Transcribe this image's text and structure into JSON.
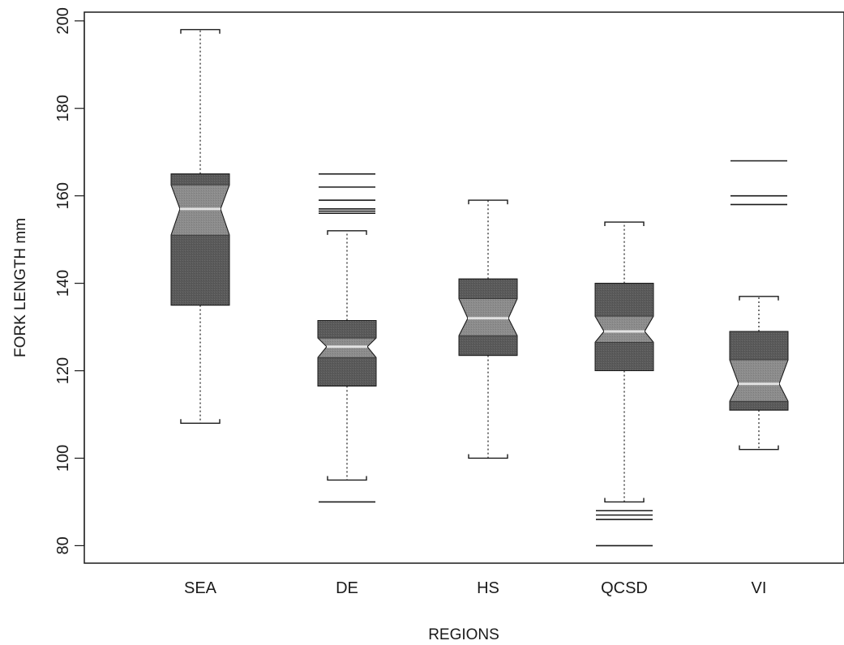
{
  "chart_data": {
    "type": "boxplot",
    "notched": true,
    "title": "",
    "xlabel": "REGIONS",
    "ylabel": "FORK LENGTH mm",
    "ylim": [
      76,
      202
    ],
    "yticks": [
      80,
      100,
      120,
      140,
      160,
      180,
      200
    ],
    "categories": [
      "SEA",
      "DE",
      "HS",
      "QCSD",
      "VI"
    ],
    "boxes": [
      {
        "name": "SEA",
        "whisker_low": 108,
        "q1": 135,
        "median": 157,
        "q3": 165,
        "whisker_high": 198,
        "notch_low": 151,
        "notch_high": 162.5,
        "outliers": []
      },
      {
        "name": "DE",
        "whisker_low": 95,
        "q1": 116.5,
        "median": 125.5,
        "q3": 131.5,
        "whisker_high": 152,
        "notch_low": 123,
        "notch_high": 127.5,
        "outliers": [
          90,
          156,
          156.5,
          157,
          159,
          162,
          165
        ]
      },
      {
        "name": "HS",
        "whisker_low": 100,
        "q1": 123.5,
        "median": 132,
        "q3": 141,
        "whisker_high": 159,
        "notch_low": 128,
        "notch_high": 136.5,
        "outliers": []
      },
      {
        "name": "QCSD",
        "whisker_low": 90,
        "q1": 120,
        "median": 129,
        "q3": 140,
        "whisker_high": 154,
        "notch_low": 126.5,
        "notch_high": 132.5,
        "outliers": [
          80,
          86,
          87,
          88
        ]
      },
      {
        "name": "VI",
        "whisker_low": 102,
        "q1": 111,
        "median": 117,
        "q3": 129,
        "whisker_high": 137,
        "notch_low": 113,
        "notch_high": 122.5,
        "outliers": [
          158,
          160,
          168
        ]
      }
    ],
    "colors": {
      "box_dark": "#5a5a5a",
      "box_mid": "#8c8c8c",
      "median_line": "#e2e2e2",
      "line": "#1a1a1a"
    },
    "grid": false,
    "legend": "none"
  }
}
